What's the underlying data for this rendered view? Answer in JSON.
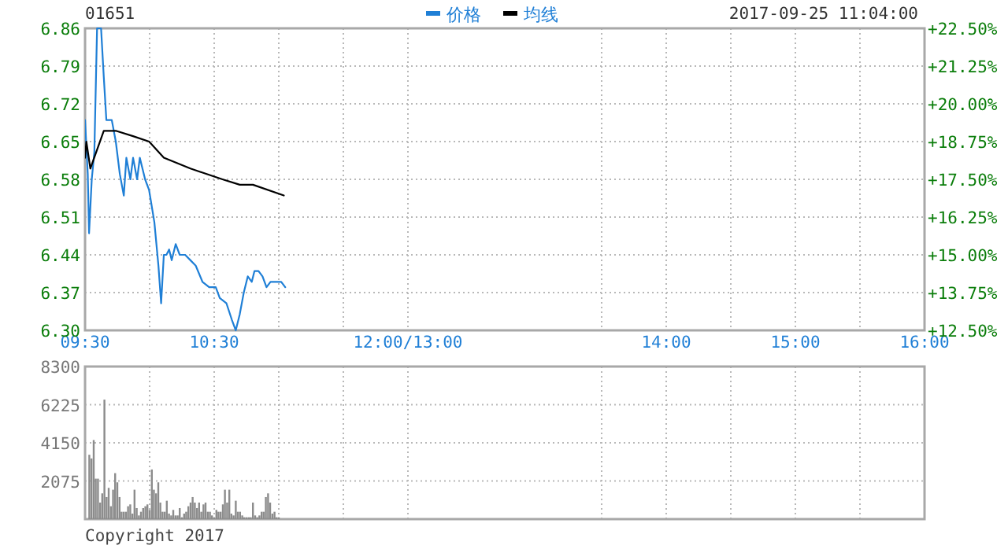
{
  "chart_data": [
    {
      "type": "line",
      "title": "01651",
      "annotations": [
        "2017-09-25 11:04:00"
      ],
      "legend": "top",
      "grid": true,
      "xlim": [
        9.5,
        16
      ],
      "xticks": [
        {
          "value": 9.5,
          "label": "09:30"
        },
        {
          "value": 10,
          "label": null
        },
        {
          "value": 10.5,
          "label": "10:30"
        },
        {
          "value": 11,
          "label": null
        },
        {
          "value": 11.5,
          "label": null
        },
        {
          "value": 12,
          "label": "12:00/13:00"
        },
        {
          "value": 13.5,
          "label": null
        },
        {
          "value": 14,
          "label": "14:00"
        },
        {
          "value": 14.5,
          "label": null
        },
        {
          "value": 15,
          "label": "15:00"
        },
        {
          "value": 15.5,
          "label": null
        },
        {
          "value": 16,
          "label": "16:00"
        }
      ],
      "ylim": [
        6.3,
        6.86
      ],
      "yticks": [
        {
          "value": 6.3,
          "label": "6.30"
        },
        6.37,
        6.44,
        6.51,
        6.58,
        6.65,
        6.72,
        6.79,
        6.86
      ],
      "y2lim": [
        12.5,
        22.5
      ],
      "y2ticks": [
        {
          "value": 12.5,
          "label": "+12.50%"
        },
        {
          "value": 13.75,
          "label": "+13.75%"
        },
        {
          "value": 15,
          "label": "+15.00%"
        },
        {
          "value": 16.25,
          "label": "+16.25%"
        },
        {
          "value": 17.5,
          "label": "+17.50%"
        },
        {
          "value": 18.75,
          "label": "+18.75%"
        },
        {
          "value": 20,
          "label": "+20.00%"
        },
        {
          "value": 21.25,
          "label": "+21.25%"
        },
        {
          "value": 22.5,
          "label": "+22.50%"
        }
      ],
      "series": [
        {
          "name": "价格",
          "color": "#1f7fd6",
          "x": [
            9.5,
            9.521,
            9.531,
            9.552,
            9.572,
            9.593,
            9.624,
            9.645,
            9.665,
            9.707,
            9.738,
            9.769,
            9.8,
            9.82,
            9.851,
            9.872,
            9.903,
            9.924,
            9.965,
            9.996,
            10.037,
            10.068,
            10.089,
            10.11,
            10.13,
            10.151,
            10.171,
            10.202,
            10.233,
            10.275,
            10.316,
            10.357,
            10.409,
            10.461,
            10.512,
            10.543,
            10.595,
            10.636,
            10.667,
            10.698,
            10.729,
            10.76,
            10.791,
            10.812,
            10.843,
            10.874,
            10.905,
            10.936,
            10.977,
            11.019,
            11.05
          ],
          "values": [
            6.69,
            6.59,
            6.48,
            6.58,
            6.63,
            6.86,
            6.86,
            6.77,
            6.69,
            6.69,
            6.65,
            6.59,
            6.55,
            6.62,
            6.58,
            6.62,
            6.58,
            6.62,
            6.58,
            6.56,
            6.5,
            6.42,
            6.35,
            6.44,
            6.44,
            6.45,
            6.43,
            6.46,
            6.44,
            6.44,
            6.43,
            6.42,
            6.39,
            6.38,
            6.38,
            6.36,
            6.35,
            6.32,
            6.3,
            6.33,
            6.37,
            6.4,
            6.39,
            6.41,
            6.41,
            6.4,
            6.38,
            6.39,
            6.39,
            6.39,
            6.38
          ]
        },
        {
          "name": "均线",
          "color": "#000000",
          "x": [
            9.5,
            9.51,
            9.541,
            9.645,
            9.738,
            9.872,
            9.996,
            10.11,
            10.316,
            10.564,
            10.698,
            10.8,
            11.039
          ],
          "values": [
            6.62,
            6.65,
            6.6,
            6.67,
            6.67,
            6.66,
            6.65,
            6.62,
            6.6,
            6.58,
            6.57,
            6.57,
            6.55
          ]
        }
      ]
    },
    {
      "type": "bar",
      "annotations": [
        "Copyright 2017"
      ],
      "grid": true,
      "tick_labels": "y",
      "xlim": [
        9.5,
        16
      ],
      "xticks": [
        {
          "value": 9.5,
          "label": null
        },
        {
          "value": 10,
          "label": null
        },
        {
          "value": 10.5,
          "label": null
        },
        {
          "value": 11,
          "label": null
        },
        {
          "value": 11.5,
          "label": null
        },
        {
          "value": 12,
          "label": null
        },
        {
          "value": 13.5,
          "label": null
        },
        {
          "value": 14,
          "label": null
        },
        {
          "value": 14.5,
          "label": null
        },
        {
          "value": 15,
          "label": null
        },
        {
          "value": 15.5,
          "label": null
        },
        {
          "value": 16,
          "label": null
        }
      ],
      "ylim": [
        0,
        8300
      ],
      "yticks": [
        2075,
        4150,
        6225,
        8300
      ],
      "series": [
        {
          "color": "#8c8c8c",
          "x": [
            9.533,
            9.55,
            9.567,
            9.583,
            9.6,
            9.617,
            9.633,
            9.65,
            9.667,
            9.683,
            9.7,
            9.717,
            9.733,
            9.75,
            9.767,
            9.783,
            9.8,
            9.817,
            9.833,
            9.85,
            9.867,
            9.883,
            9.9,
            9.917,
            9.933,
            9.95,
            9.967,
            9.983,
            10.0,
            10.017,
            10.033,
            10.05,
            10.067,
            10.083,
            10.1,
            10.117,
            10.133,
            10.15,
            10.167,
            10.183,
            10.2,
            10.217,
            10.233,
            10.25,
            10.267,
            10.283,
            10.3,
            10.317,
            10.333,
            10.35,
            10.367,
            10.383,
            10.4,
            10.417,
            10.433,
            10.45,
            10.467,
            10.483,
            10.5,
            10.517,
            10.533,
            10.55,
            10.567,
            10.583,
            10.6,
            10.617,
            10.633,
            10.65,
            10.667,
            10.683,
            10.7,
            10.717,
            10.733,
            10.75,
            10.767,
            10.783,
            10.8,
            10.817,
            10.833,
            10.85,
            10.867,
            10.883,
            10.9,
            10.917,
            10.933,
            10.95,
            10.967,
            10.983,
            11.0
          ],
          "values": [
            3500,
            3300,
            4300,
            2200,
            2200,
            900,
            1400,
            6500,
            1200,
            1700,
            700,
            1600,
            2500,
            2000,
            1200,
            400,
            400,
            400,
            700,
            800,
            300,
            1600,
            600,
            200,
            400,
            600,
            700,
            800,
            500,
            2700,
            1600,
            1400,
            2000,
            900,
            400,
            400,
            1000,
            300,
            200,
            500,
            200,
            200,
            600,
            100,
            300,
            400,
            700,
            900,
            1200,
            900,
            600,
            900,
            400,
            800,
            900,
            400,
            400,
            200,
            100,
            500,
            400,
            400,
            800,
            1600,
            900,
            1600,
            300,
            200,
            1000,
            400,
            400,
            200,
            100,
            100,
            100,
            100,
            900,
            200,
            100,
            200,
            400,
            400,
            1200,
            1400,
            900,
            300,
            400,
            100,
            100
          ]
        }
      ]
    }
  ]
}
